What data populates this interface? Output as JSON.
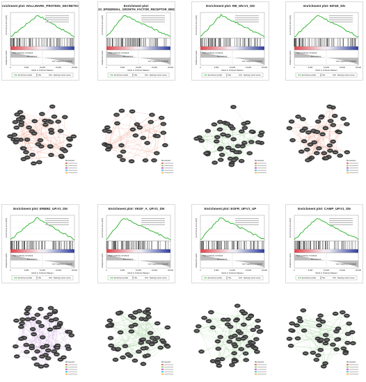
{
  "gsea_panels": [
    {
      "title": "Enrichment plot: HALLMARK_PROTEIN_SECRETION"
    },
    {
      "title": "Enrichment plot:",
      "title2": "GO_EPIDERMAL_GROWTH_FACTOR_RECEPTOR_BIND"
    },
    {
      "title": "Enrichment plot: RB_DN.V1_DN"
    },
    {
      "title": "Enrichment plot: EIF4E_DN"
    },
    {
      "title": "Enrichment plot: ERBB2_UP.V1_DN"
    },
    {
      "title": "Enrichment plot: VEGF_A_UP.V1_DN"
    },
    {
      "title": "Enrichment plot: EGFR_UP.V1_UP"
    },
    {
      "title": "Enrichment plot: CAMP_UP.V1_DN"
    }
  ],
  "common_labels": {
    "y_es": "Enrichment score (ES)",
    "y_rank": "Ranked list metric",
    "x_label": "Rank in Ordered Dataset",
    "pos_label": "'High' (positively correlated)",
    "neg_label": "'Low' (negatively correlated)",
    "zero_cross": "Zero score at",
    "legend_es": "Enrichment profile",
    "legend_hits": "Hits",
    "legend_rank": "Ranking metric scores",
    "x_ticks": [
      "0",
      "5,000",
      "10,000",
      "15,000",
      "20,000"
    ]
  },
  "network_legend_title": "Removed",
  "colors": {
    "es_curve": "#22b022",
    "pos_bar": "#e0434b",
    "neg_bar": "#2f3e9e",
    "node": "#3d3d3d",
    "edge_pink": "#f2b6a6",
    "edge_green": "#b6dcb0",
    "edge_purple": "#d7b9e6"
  }
}
